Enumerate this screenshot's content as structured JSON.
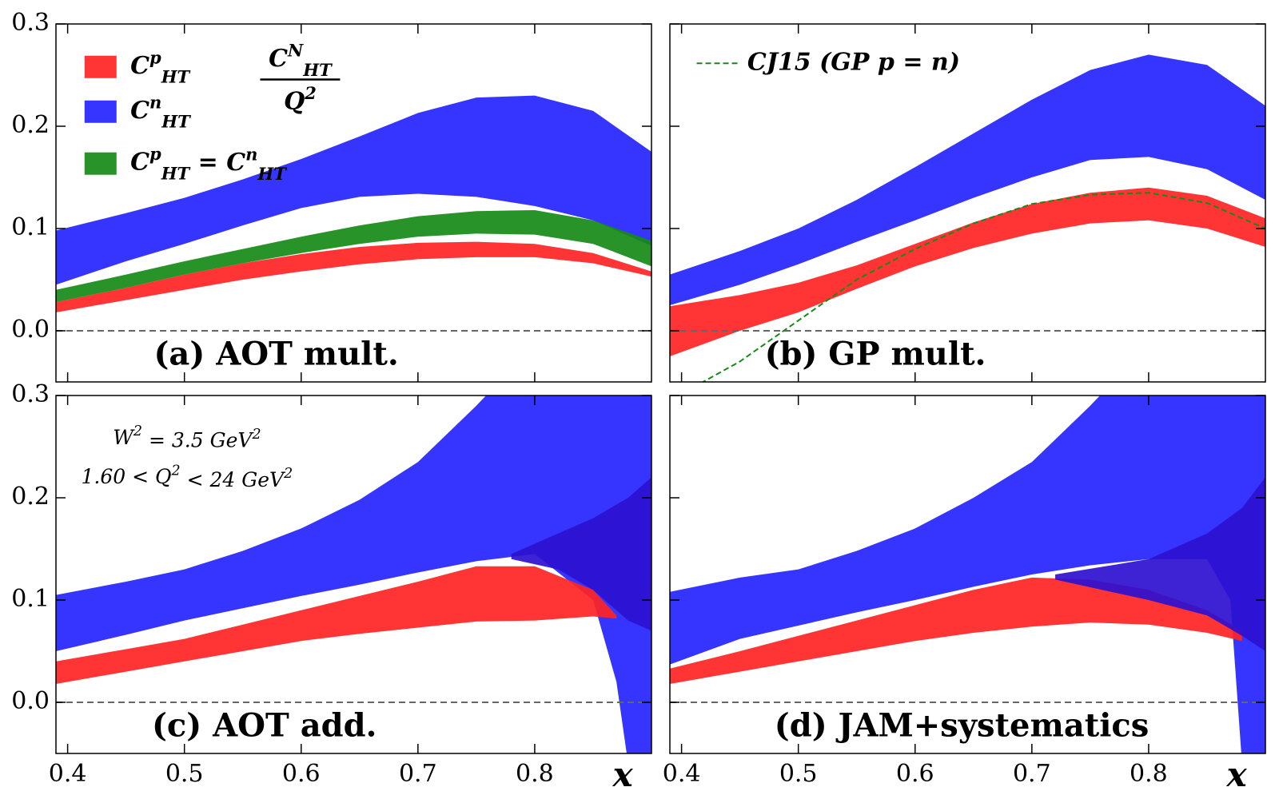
{
  "chart_data": [
    {
      "type": "band",
      "panel_label": "(a) AOT mult.",
      "formula": {
        "numerator": "C^{N}_{HT}",
        "denominator": "Q^{2}"
      },
      "legend": "upper left",
      "xlim": [
        0.39,
        0.9
      ],
      "ylim": [
        -0.05,
        0.3
      ],
      "xticks": [
        0.4,
        0.5,
        0.6,
        0.7,
        0.8
      ],
      "yticks": [
        {
          "value": 0,
          "label": "0.0"
        },
        0.1,
        0.2,
        0.3
      ],
      "series": [
        {
          "name": "C^{p}_{HT}",
          "color": "#ff2424",
          "x": [
            0.39,
            0.45,
            0.5,
            0.55,
            0.6,
            0.65,
            0.7,
            0.75,
            0.8,
            0.85,
            0.9
          ],
          "lower": [
            0.018,
            0.03,
            0.04,
            0.05,
            0.058,
            0.065,
            0.07,
            0.072,
            0.072,
            0.066,
            0.053
          ],
          "upper": [
            0.028,
            0.042,
            0.055,
            0.066,
            0.075,
            0.082,
            0.086,
            0.087,
            0.085,
            0.076,
            0.058
          ]
        },
        {
          "name": "C^{n}_{HT}",
          "color": "#2424ff",
          "x": [
            0.39,
            0.45,
            0.5,
            0.55,
            0.6,
            0.65,
            0.7,
            0.75,
            0.8,
            0.85,
            0.9
          ],
          "lower": [
            0.045,
            0.068,
            0.085,
            0.103,
            0.12,
            0.131,
            0.134,
            0.131,
            0.122,
            0.108,
            0.083
          ],
          "upper": [
            0.098,
            0.115,
            0.13,
            0.148,
            0.168,
            0.19,
            0.213,
            0.228,
            0.23,
            0.215,
            0.175
          ]
        },
        {
          "name": "C^{p}_{HT} = C^{n}_{HT}",
          "color": "#168a16",
          "x": [
            0.39,
            0.45,
            0.5,
            0.55,
            0.6,
            0.65,
            0.7,
            0.75,
            0.8,
            0.85,
            0.9
          ],
          "lower": [
            0.028,
            0.042,
            0.055,
            0.066,
            0.076,
            0.085,
            0.092,
            0.095,
            0.094,
            0.085,
            0.063
          ],
          "upper": [
            0.04,
            0.055,
            0.068,
            0.08,
            0.092,
            0.103,
            0.112,
            0.117,
            0.118,
            0.108,
            0.088
          ]
        }
      ]
    },
    {
      "type": "band",
      "panel_label": "(b) GP mult.",
      "xlim": [
        0.39,
        0.9
      ],
      "ylim": [
        -0.05,
        0.3
      ],
      "xticks": [
        0.4,
        0.5,
        0.6,
        0.7,
        0.8
      ],
      "yticks": [
        0,
        0.1,
        0.2,
        0.3
      ],
      "series": [
        {
          "color": "#2424ff",
          "x": [
            0.39,
            0.45,
            0.5,
            0.55,
            0.6,
            0.65,
            0.7,
            0.75,
            0.8,
            0.85,
            0.9
          ],
          "lower": [
            0.025,
            0.045,
            0.065,
            0.087,
            0.108,
            0.13,
            0.15,
            0.167,
            0.17,
            0.158,
            0.128
          ],
          "upper": [
            0.055,
            0.078,
            0.1,
            0.128,
            0.16,
            0.193,
            0.226,
            0.255,
            0.27,
            0.26,
            0.22
          ]
        },
        {
          "color": "#ff2424",
          "x": [
            0.39,
            0.45,
            0.5,
            0.55,
            0.6,
            0.65,
            0.7,
            0.75,
            0.8,
            0.85,
            0.9
          ],
          "lower": [
            -0.025,
            0.0,
            0.018,
            0.041,
            0.063,
            0.081,
            0.095,
            0.105,
            0.108,
            0.1,
            0.082
          ],
          "upper": [
            0.024,
            0.035,
            0.047,
            0.064,
            0.085,
            0.106,
            0.124,
            0.135,
            0.14,
            0.132,
            0.11
          ]
        }
      ],
      "lines": [
        {
          "name": "CJ15 (GP p = n)",
          "color": "#168a16",
          "dashed": true,
          "x": [
            0.39,
            0.45,
            0.5,
            0.55,
            0.6,
            0.65,
            0.7,
            0.75,
            0.8,
            0.85,
            0.9
          ],
          "values": [
            -0.068,
            -0.03,
            0.01,
            0.05,
            0.08,
            0.105,
            0.124,
            0.133,
            0.135,
            0.125,
            0.1
          ]
        }
      ]
    },
    {
      "type": "band",
      "panel_label": "(c) AOT add.",
      "x_label": "x",
      "annotations": [
        "W^{2} = 3.5 GeV^{2}",
        "1.60 < Q^{2} < 24 GeV^{2}"
      ],
      "xlim": [
        0.39,
        0.9
      ],
      "ylim": [
        -0.05,
        0.3
      ],
      "xticks": [
        0.4,
        0.5,
        0.6,
        0.7,
        0.8
      ],
      "yticks": [
        {
          "value": 0,
          "label": "0.0"
        },
        0.1,
        0.2,
        0.3
      ],
      "series": [
        {
          "color": "#2424ff",
          "x": [
            0.39,
            0.45,
            0.5,
            0.55,
            0.6,
            0.65,
            0.7,
            0.75,
            0.8,
            0.85,
            0.87,
            0.88,
            0.9
          ],
          "lower": [
            0.05,
            0.066,
            0.08,
            0.092,
            0.104,
            0.115,
            0.127,
            0.138,
            0.145,
            0.1,
            0.02,
            -0.06,
            -0.06
          ],
          "upper": [
            0.105,
            0.118,
            0.13,
            0.148,
            0.17,
            0.198,
            0.235,
            0.29,
            0.35,
            0.42,
            0.45,
            0.47,
            0.5
          ]
        },
        {
          "color": "#ff2424",
          "x": [
            0.39,
            0.45,
            0.5,
            0.55,
            0.6,
            0.65,
            0.7,
            0.75,
            0.8,
            0.85,
            0.87
          ],
          "lower": [
            0.018,
            0.03,
            0.04,
            0.05,
            0.06,
            0.067,
            0.073,
            0.079,
            0.08,
            0.084,
            0.082
          ],
          "upper": [
            0.04,
            0.052,
            0.062,
            0.076,
            0.09,
            0.104,
            0.118,
            0.133,
            0.133,
            0.11,
            0.085
          ]
        },
        {
          "color": "#2c10d0",
          "x": [
            0.78,
            0.82,
            0.85,
            0.88,
            0.9
          ],
          "lower": [
            0.14,
            0.13,
            0.11,
            0.08,
            0.07
          ],
          "upper": [
            0.145,
            0.165,
            0.18,
            0.2,
            0.22
          ]
        }
      ]
    },
    {
      "type": "band",
      "panel_label": "(d) JAM+systematics",
      "x_label": "x",
      "xlim": [
        0.39,
        0.9
      ],
      "ylim": [
        -0.05,
        0.3
      ],
      "xticks": [
        0.4,
        0.5,
        0.6,
        0.7,
        0.8
      ],
      "yticks": [
        0,
        0.1,
        0.2,
        0.3
      ],
      "series": [
        {
          "color": "#2424ff",
          "x": [
            0.39,
            0.45,
            0.5,
            0.55,
            0.6,
            0.65,
            0.7,
            0.75,
            0.8,
            0.85,
            0.87,
            0.88,
            0.9
          ],
          "lower": [
            0.037,
            0.062,
            0.075,
            0.088,
            0.1,
            0.113,
            0.125,
            0.134,
            0.14,
            0.14,
            0.1,
            -0.06,
            -0.06
          ],
          "upper": [
            0.108,
            0.122,
            0.13,
            0.148,
            0.17,
            0.2,
            0.235,
            0.29,
            0.35,
            0.42,
            0.45,
            0.47,
            0.5
          ]
        },
        {
          "color": "#ff2424",
          "x": [
            0.39,
            0.45,
            0.5,
            0.55,
            0.6,
            0.65,
            0.7,
            0.75,
            0.8,
            0.85,
            0.88
          ],
          "lower": [
            0.018,
            0.03,
            0.04,
            0.05,
            0.06,
            0.068,
            0.074,
            0.078,
            0.076,
            0.068,
            0.06
          ],
          "upper": [
            0.033,
            0.05,
            0.065,
            0.08,
            0.095,
            0.11,
            0.122,
            0.12,
            0.11,
            0.09,
            0.07
          ]
        },
        {
          "color": "#2c10d0",
          "x": [
            0.72,
            0.8,
            0.85,
            0.88,
            0.9
          ],
          "lower": [
            0.12,
            0.1,
            0.085,
            0.065,
            0.05
          ],
          "upper": [
            0.125,
            0.14,
            0.165,
            0.19,
            0.22
          ]
        }
      ]
    }
  ]
}
